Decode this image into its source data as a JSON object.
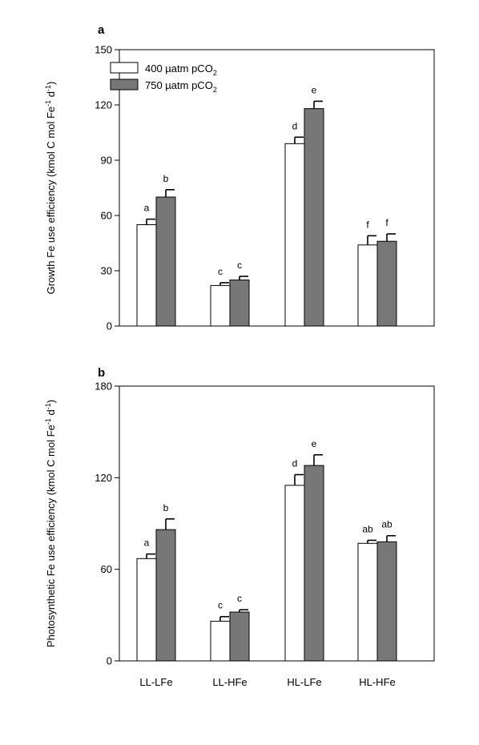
{
  "panels_label": [
    "a",
    "b"
  ],
  "legend": {
    "entries": [
      {
        "text": "400 µatm pCO",
        "sub": "2",
        "color": "#ffffff"
      },
      {
        "text": "750 µatm pCO",
        "sub": "2",
        "color": "#777777"
      }
    ]
  },
  "chart_data": [
    {
      "type": "bar",
      "panel": "a",
      "categories": [
        "LL-LFe",
        "LL-HFe",
        "HL-LFe",
        "HL-HFe"
      ],
      "ylabel": {
        "pre": "Growth Fe use efficiency  (kmol C mol Fe",
        "s1": "-1",
        "mid": " d",
        "s2": "-1",
        "post": ")"
      },
      "ylim": [
        0,
        150
      ],
      "yticks": [
        0,
        30,
        60,
        90,
        120,
        150
      ],
      "show_xticklabels": false,
      "series": [
        {
          "name": "400 µatm pCO2",
          "color": "#ffffff",
          "values": [
            55,
            22,
            99,
            44
          ],
          "errors": [
            3,
            1.5,
            3.5,
            5
          ],
          "letters": [
            "a",
            "c",
            "d",
            "f"
          ]
        },
        {
          "name": "750 µatm pCO2",
          "color": "#777777",
          "values": [
            70,
            25,
            118,
            46
          ],
          "errors": [
            4,
            2,
            4,
            4
          ],
          "letters": [
            "b",
            "c",
            "e",
            "f"
          ]
        }
      ]
    },
    {
      "type": "bar",
      "panel": "b",
      "categories": [
        "LL-LFe",
        "LL-HFe",
        "HL-LFe",
        "HL-HFe"
      ],
      "ylabel": {
        "pre": "Photosynthetic Fe use efficiency  (kmol C mol Fe",
        "s1": "-1",
        "mid": " d",
        "s2": "-1",
        "post": ")"
      },
      "ylim": [
        0,
        180
      ],
      "yticks": [
        0,
        60,
        120,
        180
      ],
      "show_xticklabels": true,
      "series": [
        {
          "name": "400 µatm pCO2",
          "color": "#ffffff",
          "values": [
            67,
            26,
            115,
            77
          ],
          "errors": [
            3,
            3,
            7,
            2
          ],
          "letters": [
            "a",
            "c",
            "d",
            "ab"
          ]
        },
        {
          "name": "750 µatm pCO2",
          "color": "#777777",
          "values": [
            86,
            32,
            128,
            78
          ],
          "errors": [
            7,
            1.5,
            7,
            4
          ],
          "letters": [
            "b",
            "c",
            "e",
            "ab"
          ]
        }
      ]
    }
  ]
}
